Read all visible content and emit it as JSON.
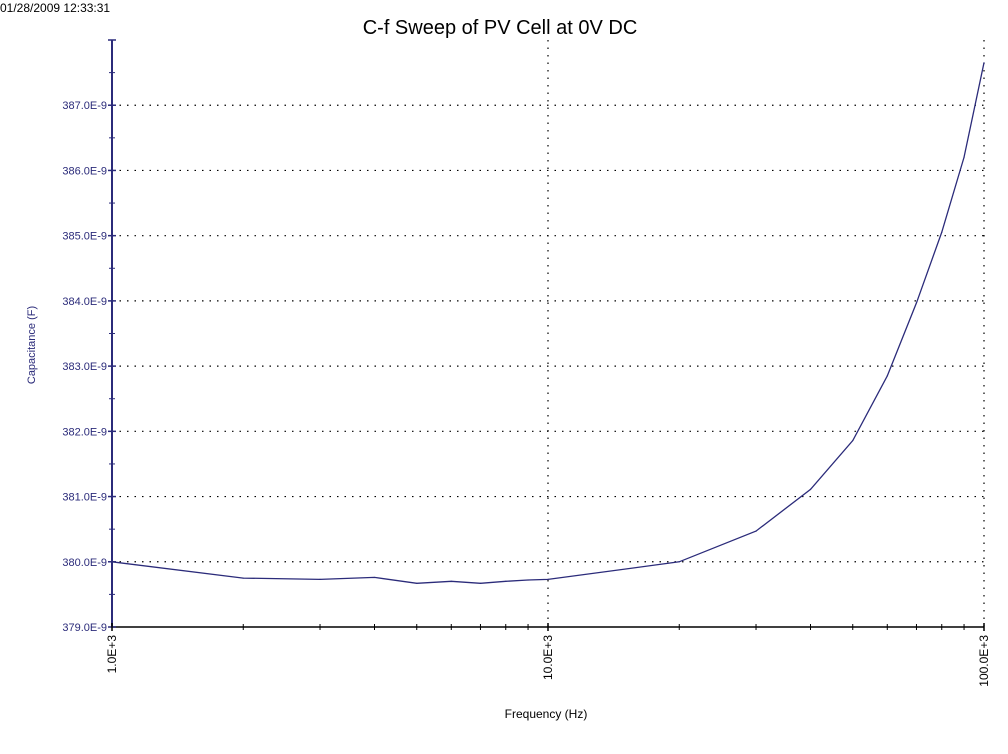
{
  "timestamp": "01/28/2009 12:33:31",
  "chart_data": {
    "type": "line",
    "title": "C-f Sweep of PV Cell at 0V DC",
    "xlabel": "Frequency (Hz)",
    "ylabel": "Capacitance (F)",
    "xscale": "log",
    "xlim": [
      1000,
      100000
    ],
    "ylim": [
      3.79e-07,
      3.88e-07
    ],
    "xticks": [
      {
        "value": 1000,
        "label": "1.0E+3"
      },
      {
        "value": 10000,
        "label": "10.0E+3"
      },
      {
        "value": 100000,
        "label": "100.0E+3"
      }
    ],
    "yticks": [
      {
        "value": 3.79e-07,
        "label": "379.0E-9"
      },
      {
        "value": 3.8e-07,
        "label": "380.0E-9"
      },
      {
        "value": 3.81e-07,
        "label": "381.0E-9"
      },
      {
        "value": 3.82e-07,
        "label": "382.0E-9"
      },
      {
        "value": 3.83e-07,
        "label": "383.0E-9"
      },
      {
        "value": 3.84e-07,
        "label": "384.0E-9"
      },
      {
        "value": 3.85e-07,
        "label": "385.0E-9"
      },
      {
        "value": 3.86e-07,
        "label": "386.0E-9"
      },
      {
        "value": 3.87e-07,
        "label": "387.0E-9"
      }
    ],
    "grid": "dotted",
    "line_color": "#2b2b7a",
    "axis_color": "#2b2b7a",
    "series": [
      {
        "x": [
          1000,
          2000,
          3000,
          4000,
          5000,
          6000,
          7000,
          8000,
          9000,
          10000,
          20000,
          30000,
          40000,
          50000,
          60000,
          70000,
          80000,
          90000,
          100000
        ],
        "y": [
          3.8e-07,
          3.7975e-07,
          3.7973e-07,
          3.7976e-07,
          3.7967e-07,
          3.797e-07,
          3.7967e-07,
          3.797e-07,
          3.7972e-07,
          3.7973e-07,
          3.8e-07,
          3.8047e-07,
          3.8111e-07,
          3.8186e-07,
          3.8285e-07,
          3.8397e-07,
          3.8505e-07,
          3.862e-07,
          3.8765e-07
        ]
      }
    ]
  }
}
